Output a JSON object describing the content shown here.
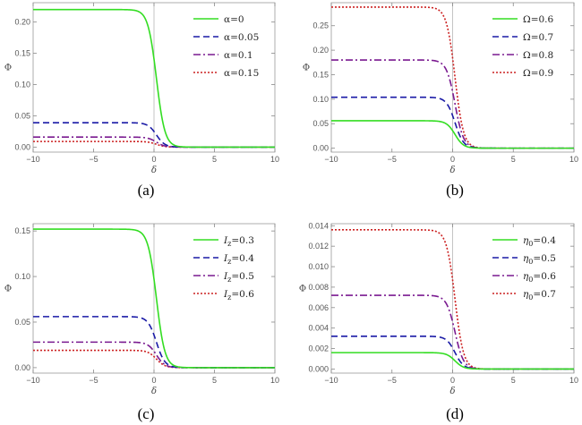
{
  "chart_data": [
    {
      "type": "line",
      "panel_label": "(a)",
      "xlabel": "δ",
      "ylabel": "Φ",
      "xlim": [
        -10,
        10
      ],
      "ylim": [
        -0.008,
        0.231
      ],
      "x_ticks": [
        -10,
        -5,
        0,
        5,
        10
      ],
      "x_tick_labels": [
        "−10",
        "−5",
        "0",
        "5",
        "10"
      ],
      "y_ticks": [
        0.0,
        0.05,
        0.1,
        0.15,
        0.2
      ],
      "y_tick_labels": [
        "0.00",
        "0.05",
        "0.10",
        "0.15",
        "0.20"
      ],
      "legend_position": "top-right",
      "grid": false,
      "profile": {
        "center": 0.2,
        "width": 0.35
      },
      "series": [
        {
          "name": "α=0",
          "plateau": 0.22,
          "color": "#33dd22",
          "dash": "solid"
        },
        {
          "name": "α=0.05",
          "plateau": 0.039,
          "color": "#1a1aa6",
          "dash": "dashed"
        },
        {
          "name": "α=0.1",
          "plateau": 0.016,
          "color": "#7a1a90",
          "dash": "dashdot"
        },
        {
          "name": "α=0.15",
          "plateau": 0.009,
          "color": "#cc2222",
          "dash": "dotted"
        }
      ]
    },
    {
      "type": "line",
      "panel_label": "(b)",
      "xlabel": "δ",
      "ylabel": "Φ",
      "xlim": [
        -10,
        10
      ],
      "ylim": [
        -0.008,
        0.297
      ],
      "x_ticks": [
        -10,
        -5,
        0,
        5,
        10
      ],
      "x_tick_labels": [
        "−10",
        "−5",
        "0",
        "5",
        "10"
      ],
      "y_ticks": [
        0.0,
        0.05,
        0.1,
        0.15,
        0.2,
        0.25
      ],
      "y_tick_labels": [
        "0.00",
        "0.05",
        "0.10",
        "0.15",
        "0.20",
        "0.25"
      ],
      "legend_position": "top-right",
      "grid": false,
      "profile": {
        "center": 0.2,
        "width": 0.35
      },
      "series": [
        {
          "name": "Ω=0.6",
          "plateau": 0.056,
          "color": "#33dd22",
          "dash": "solid"
        },
        {
          "name": "Ω=0.7",
          "plateau": 0.104,
          "color": "#1a1aa6",
          "dash": "dashed"
        },
        {
          "name": "Ω=0.8",
          "plateau": 0.18,
          "color": "#7a1a90",
          "dash": "dashdot"
        },
        {
          "name": "Ω=0.9",
          "plateau": 0.288,
          "color": "#cc2222",
          "dash": "dotted"
        }
      ]
    },
    {
      "type": "line",
      "panel_label": "(c)",
      "xlabel": "δ",
      "ylabel": "Φ",
      "xlim": [
        -10,
        10
      ],
      "ylim": [
        -0.006,
        0.158
      ],
      "x_ticks": [
        -10,
        -5,
        0,
        5,
        10
      ],
      "x_tick_labels": [
        "−10",
        "−5",
        "0",
        "5",
        "10"
      ],
      "y_ticks": [
        0.0,
        0.05,
        0.1,
        0.15
      ],
      "y_tick_labels": [
        "0.00",
        "0.05",
        "0.10",
        "0.15"
      ],
      "legend_position": "top-right",
      "grid": false,
      "profile": {
        "center": 0.2,
        "width": 0.35
      },
      "series": [
        {
          "name": "Iz=0.3",
          "name_main": "I",
          "name_sub": "z",
          "name_rest": "=0.3",
          "plateau": 0.152,
          "color": "#33dd22",
          "dash": "solid"
        },
        {
          "name": "Iz=0.4",
          "name_main": "I",
          "name_sub": "z",
          "name_rest": "=0.4",
          "plateau": 0.056,
          "color": "#1a1aa6",
          "dash": "dashed"
        },
        {
          "name": "Iz=0.5",
          "name_main": "I",
          "name_sub": "z",
          "name_rest": "=0.5",
          "plateau": 0.028,
          "color": "#7a1a90",
          "dash": "dashdot"
        },
        {
          "name": "Iz=0.6",
          "name_main": "I",
          "name_sub": "z",
          "name_rest": "=0.6",
          "plateau": 0.019,
          "color": "#cc2222",
          "dash": "dotted"
        }
      ]
    },
    {
      "type": "line",
      "panel_label": "(d)",
      "xlabel": "δ",
      "ylabel": "Φ",
      "xlim": [
        -10,
        10
      ],
      "ylim": [
        -0.0004,
        0.0142
      ],
      "x_ticks": [
        -10,
        -5,
        0,
        5,
        10
      ],
      "x_tick_labels": [
        "−10",
        "−5",
        "0",
        "5",
        "10"
      ],
      "y_ticks": [
        0.0,
        0.002,
        0.004,
        0.006,
        0.008,
        0.01,
        0.012,
        0.014
      ],
      "y_tick_labels": [
        "0.000",
        "0.002",
        "0.004",
        "0.006",
        "0.008",
        "0.010",
        "0.012",
        "0.014"
      ],
      "legend_position": "top-right",
      "grid": false,
      "profile": {
        "center": 0.2,
        "width": 0.35
      },
      "series": [
        {
          "name": "η0=0.4",
          "name_main": "η",
          "name_sub": "0",
          "name_rest": "=0.4",
          "plateau": 0.0016,
          "color": "#33dd22",
          "dash": "solid"
        },
        {
          "name": "η0=0.5",
          "name_main": "η",
          "name_sub": "0",
          "name_rest": "=0.5",
          "plateau": 0.0032,
          "color": "#1a1aa6",
          "dash": "dashed"
        },
        {
          "name": "η0=0.6",
          "name_main": "η",
          "name_sub": "0",
          "name_rest": "=0.6",
          "plateau": 0.0072,
          "color": "#7a1a90",
          "dash": "dashdot"
        },
        {
          "name": "η0=0.7",
          "name_main": "η",
          "name_sub": "0",
          "name_rest": "=0.7",
          "plateau": 0.0136,
          "color": "#cc2222",
          "dash": "dotted"
        }
      ]
    }
  ]
}
